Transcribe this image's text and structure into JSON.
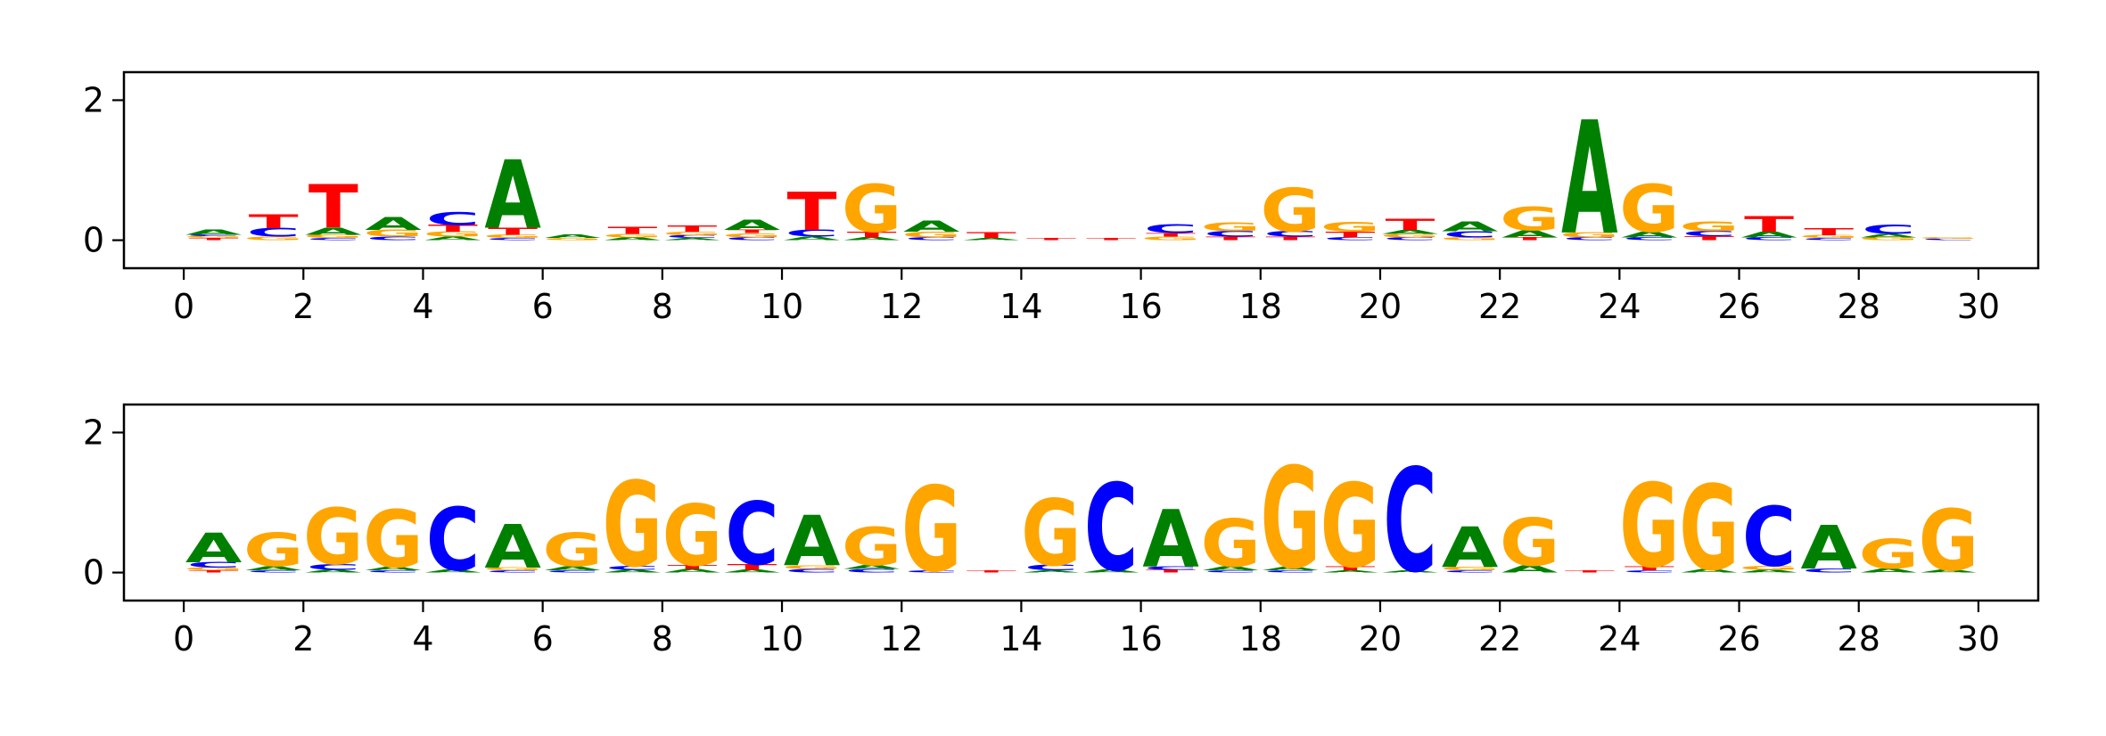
{
  "colors": {
    "A": "#008000",
    "C": "#0000ff",
    "G": "#ffa500",
    "T": "#ff0000"
  },
  "chart_data": [
    {
      "type": "sequence-logo",
      "title": "",
      "xlabel": "",
      "ylabel": "",
      "xlim": [
        -1,
        31
      ],
      "ylim": [
        -0.4,
        2.4
      ],
      "xticks": [
        "0",
        "2",
        "4",
        "6",
        "8",
        "10",
        "12",
        "14",
        "16",
        "18",
        "20",
        "22",
        "24",
        "26",
        "28",
        "30"
      ],
      "yticks": [
        "0",
        "2"
      ],
      "positions": [
        {
          "x": 0.5,
          "letters": [
            {
              "base": "T",
              "h": 0.03
            },
            {
              "base": "G",
              "h": 0.03
            },
            {
              "base": "C",
              "h": 0.02
            },
            {
              "base": "A",
              "h": 0.07
            }
          ]
        },
        {
          "x": 1.5,
          "letters": [
            {
              "base": "G",
              "h": 0.05
            },
            {
              "base": "C",
              "h": 0.12
            },
            {
              "base": "T",
              "h": 0.2
            }
          ]
        },
        {
          "x": 2.5,
          "letters": [
            {
              "base": "C",
              "h": 0.03
            },
            {
              "base": "G",
              "h": 0.05
            },
            {
              "base": "A",
              "h": 0.1
            },
            {
              "base": "T",
              "h": 0.62
            }
          ]
        },
        {
          "x": 3.5,
          "letters": [
            {
              "base": "C",
              "h": 0.05
            },
            {
              "base": "G",
              "h": 0.1
            },
            {
              "base": "A",
              "h": 0.18
            }
          ]
        },
        {
          "x": 4.5,
          "letters": [
            {
              "base": "A",
              "h": 0.05
            },
            {
              "base": "G",
              "h": 0.07
            },
            {
              "base": "T",
              "h": 0.1
            },
            {
              "base": "C",
              "h": 0.18
            }
          ]
        },
        {
          "x": 5.5,
          "letters": [
            {
              "base": "C",
              "h": 0.03
            },
            {
              "base": "G",
              "h": 0.05
            },
            {
              "base": "T",
              "h": 0.1
            },
            {
              "base": "A",
              "h": 0.98
            }
          ]
        },
        {
          "x": 6.5,
          "letters": [
            {
              "base": "G",
              "h": 0.03
            },
            {
              "base": "A",
              "h": 0.05
            }
          ]
        },
        {
          "x": 7.5,
          "letters": [
            {
              "base": "A",
              "h": 0.04
            },
            {
              "base": "G",
              "h": 0.05
            },
            {
              "base": "T",
              "h": 0.1
            }
          ]
        },
        {
          "x": 8.5,
          "letters": [
            {
              "base": "A",
              "h": 0.03
            },
            {
              "base": "C",
              "h": 0.04
            },
            {
              "base": "G",
              "h": 0.05
            },
            {
              "base": "T",
              "h": 0.09
            }
          ]
        },
        {
          "x": 9.5,
          "letters": [
            {
              "base": "C",
              "h": 0.04
            },
            {
              "base": "G",
              "h": 0.06
            },
            {
              "base": "T",
              "h": 0.05
            },
            {
              "base": "A",
              "h": 0.15
            }
          ]
        },
        {
          "x": 10.5,
          "letters": [
            {
              "base": "A",
              "h": 0.05
            },
            {
              "base": "C",
              "h": 0.1
            },
            {
              "base": "T",
              "h": 0.55
            }
          ]
        },
        {
          "x": 11.5,
          "letters": [
            {
              "base": "A",
              "h": 0.04
            },
            {
              "base": "T",
              "h": 0.08
            },
            {
              "base": "G",
              "h": 0.68
            }
          ]
        },
        {
          "x": 12.5,
          "letters": [
            {
              "base": "C",
              "h": 0.04
            },
            {
              "base": "G",
              "h": 0.08
            },
            {
              "base": "A",
              "h": 0.16
            }
          ]
        },
        {
          "x": 13.5,
          "letters": [
            {
              "base": "A",
              "h": 0.03
            },
            {
              "base": "T",
              "h": 0.08
            }
          ]
        },
        {
          "x": 14.5,
          "letters": [
            {
              "base": "T",
              "h": 0.03
            }
          ]
        },
        {
          "x": 15.5,
          "letters": [
            {
              "base": "T",
              "h": 0.03
            }
          ]
        },
        {
          "x": 16.5,
          "letters": [
            {
              "base": "G",
              "h": 0.05
            },
            {
              "base": "T",
              "h": 0.05
            },
            {
              "base": "C",
              "h": 0.12
            }
          ]
        },
        {
          "x": 17.5,
          "letters": [
            {
              "base": "T",
              "h": 0.05
            },
            {
              "base": "C",
              "h": 0.08
            },
            {
              "base": "G",
              "h": 0.12
            }
          ]
        },
        {
          "x": 18.5,
          "letters": [
            {
              "base": "T",
              "h": 0.05
            },
            {
              "base": "C",
              "h": 0.08
            },
            {
              "base": "G",
              "h": 0.62
            }
          ]
        },
        {
          "x": 19.5,
          "letters": [
            {
              "base": "C",
              "h": 0.04
            },
            {
              "base": "T",
              "h": 0.08
            },
            {
              "base": "G",
              "h": 0.14
            }
          ]
        },
        {
          "x": 20.5,
          "letters": [
            {
              "base": "C",
              "h": 0.04
            },
            {
              "base": "G",
              "h": 0.05
            },
            {
              "base": "A",
              "h": 0.06
            },
            {
              "base": "T",
              "h": 0.16
            }
          ]
        },
        {
          "x": 21.5,
          "letters": [
            {
              "base": "G",
              "h": 0.04
            },
            {
              "base": "C",
              "h": 0.09
            },
            {
              "base": "A",
              "h": 0.14
            }
          ]
        },
        {
          "x": 22.5,
          "letters": [
            {
              "base": "T",
              "h": 0.04
            },
            {
              "base": "A",
              "h": 0.1
            },
            {
              "base": "G",
              "h": 0.34
            }
          ]
        },
        {
          "x": 23.5,
          "letters": [
            {
              "base": "C",
              "h": 0.04
            },
            {
              "base": "G",
              "h": 0.07
            },
            {
              "base": "A",
              "h": 1.62
            }
          ]
        },
        {
          "x": 24.5,
          "letters": [
            {
              "base": "C",
              "h": 0.04
            },
            {
              "base": "A",
              "h": 0.08
            },
            {
              "base": "G",
              "h": 0.68
            }
          ]
        },
        {
          "x": 25.5,
          "letters": [
            {
              "base": "T",
              "h": 0.06
            },
            {
              "base": "C",
              "h": 0.07
            },
            {
              "base": "G",
              "h": 0.14
            }
          ]
        },
        {
          "x": 26.5,
          "letters": [
            {
              "base": "C",
              "h": 0.04
            },
            {
              "base": "A",
              "h": 0.08
            },
            {
              "base": "T",
              "h": 0.22
            }
          ]
        },
        {
          "x": 27.5,
          "letters": [
            {
              "base": "C",
              "h": 0.03
            },
            {
              "base": "G",
              "h": 0.04
            },
            {
              "base": "T",
              "h": 0.1
            }
          ]
        },
        {
          "x": 28.5,
          "letters": [
            {
              "base": "G",
              "h": 0.04
            },
            {
              "base": "A",
              "h": 0.05
            },
            {
              "base": "C",
              "h": 0.13
            }
          ]
        },
        {
          "x": 29.5,
          "letters": [
            {
              "base": "C",
              "h": 0.02
            },
            {
              "base": "G",
              "h": 0.02
            }
          ]
        }
      ]
    },
    {
      "type": "sequence-logo",
      "title": "",
      "xlabel": "",
      "ylabel": "",
      "xlim": [
        -1,
        31
      ],
      "ylim": [
        -0.4,
        2.4
      ],
      "xticks": [
        "0",
        "2",
        "4",
        "6",
        "8",
        "10",
        "12",
        "14",
        "16",
        "18",
        "20",
        "22",
        "24",
        "26",
        "28",
        "30"
      ],
      "yticks": [
        "0",
        "2"
      ],
      "positions": [
        {
          "x": 0.5,
          "letters": [
            {
              "base": "T",
              "h": 0.03
            },
            {
              "base": "G",
              "h": 0.04
            },
            {
              "base": "C",
              "h": 0.08
            },
            {
              "base": "A",
              "h": 0.42
            }
          ]
        },
        {
          "x": 1.5,
          "letters": [
            {
              "base": "C",
              "h": 0.03
            },
            {
              "base": "A",
              "h": 0.06
            },
            {
              "base": "G",
              "h": 0.48
            }
          ]
        },
        {
          "x": 2.5,
          "letters": [
            {
              "base": "A",
              "h": 0.04
            },
            {
              "base": "C",
              "h": 0.08
            },
            {
              "base": "G",
              "h": 0.8
            }
          ]
        },
        {
          "x": 3.5,
          "letters": [
            {
              "base": "C",
              "h": 0.03
            },
            {
              "base": "A",
              "h": 0.05
            },
            {
              "base": "G",
              "h": 0.82
            }
          ]
        },
        {
          "x": 4.5,
          "letters": [
            {
              "base": "A",
              "h": 0.04
            },
            {
              "base": "C",
              "h": 0.9
            }
          ]
        },
        {
          "x": 5.5,
          "letters": [
            {
              "base": "C",
              "h": 0.03
            },
            {
              "base": "G",
              "h": 0.04
            },
            {
              "base": "A",
              "h": 0.62
            }
          ]
        },
        {
          "x": 6.5,
          "letters": [
            {
              "base": "C",
              "h": 0.03
            },
            {
              "base": "A",
              "h": 0.06
            },
            {
              "base": "G",
              "h": 0.48
            }
          ]
        },
        {
          "x": 7.5,
          "letters": [
            {
              "base": "A",
              "h": 0.04
            },
            {
              "base": "C",
              "h": 0.06
            },
            {
              "base": "G",
              "h": 1.22
            }
          ]
        },
        {
          "x": 8.5,
          "letters": [
            {
              "base": "A",
              "h": 0.05
            },
            {
              "base": "T",
              "h": 0.06
            },
            {
              "base": "G",
              "h": 0.88
            }
          ]
        },
        {
          "x": 9.5,
          "letters": [
            {
              "base": "A",
              "h": 0.04
            },
            {
              "base": "T",
              "h": 0.08
            },
            {
              "base": "C",
              "h": 0.9
            }
          ]
        },
        {
          "x": 10.5,
          "letters": [
            {
              "base": "C",
              "h": 0.05
            },
            {
              "base": "G",
              "h": 0.05
            },
            {
              "base": "A",
              "h": 0.72
            }
          ]
        },
        {
          "x": 11.5,
          "letters": [
            {
              "base": "C",
              "h": 0.05
            },
            {
              "base": "A",
              "h": 0.06
            },
            {
              "base": "G",
              "h": 0.55
            }
          ]
        },
        {
          "x": 12.5,
          "letters": [
            {
              "base": "C",
              "h": 0.03
            },
            {
              "base": "G",
              "h": 1.22
            }
          ]
        },
        {
          "x": 13.5,
          "letters": [
            {
              "base": "T",
              "h": 0.03
            }
          ]
        },
        {
          "x": 14.5,
          "letters": [
            {
              "base": "A",
              "h": 0.03
            },
            {
              "base": "C",
              "h": 0.08
            },
            {
              "base": "G",
              "h": 0.95
            }
          ]
        },
        {
          "x": 15.5,
          "letters": [
            {
              "base": "A",
              "h": 0.04
            },
            {
              "base": "C",
              "h": 1.25
            }
          ]
        },
        {
          "x": 16.5,
          "letters": [
            {
              "base": "T",
              "h": 0.04
            },
            {
              "base": "C",
              "h": 0.05
            },
            {
              "base": "A",
              "h": 0.82
            }
          ]
        },
        {
          "x": 17.5,
          "letters": [
            {
              "base": "C",
              "h": 0.03
            },
            {
              "base": "A",
              "h": 0.06
            },
            {
              "base": "G",
              "h": 0.68
            }
          ]
        },
        {
          "x": 18.5,
          "letters": [
            {
              "base": "C",
              "h": 0.03
            },
            {
              "base": "A",
              "h": 0.05
            },
            {
              "base": "G",
              "h": 1.45
            }
          ]
        },
        {
          "x": 19.5,
          "letters": [
            {
              "base": "A",
              "h": 0.03
            },
            {
              "base": "T",
              "h": 0.06
            },
            {
              "base": "G",
              "h": 1.2
            }
          ]
        },
        {
          "x": 20.5,
          "letters": [
            {
              "base": "A",
              "h": 0.03
            },
            {
              "base": "C",
              "h": 1.48
            }
          ]
        },
        {
          "x": 21.5,
          "letters": [
            {
              "base": "C",
              "h": 0.03
            },
            {
              "base": "G",
              "h": 0.05
            },
            {
              "base": "A",
              "h": 0.58
            }
          ]
        },
        {
          "x": 22.5,
          "letters": [
            {
              "base": "A",
              "h": 0.1
            },
            {
              "base": "G",
              "h": 0.68
            }
          ]
        },
        {
          "x": 23.5,
          "letters": [
            {
              "base": "T",
              "h": 0.03
            }
          ]
        },
        {
          "x": 24.5,
          "letters": [
            {
              "base": "C",
              "h": 0.03
            },
            {
              "base": "T",
              "h": 0.06
            },
            {
              "base": "G",
              "h": 1.2
            }
          ]
        },
        {
          "x": 25.5,
          "letters": [
            {
              "base": "A",
              "h": 0.05
            },
            {
              "base": "G",
              "h": 1.22
            }
          ]
        },
        {
          "x": 26.5,
          "letters": [
            {
              "base": "A",
              "h": 0.04
            },
            {
              "base": "G",
              "h": 0.06
            },
            {
              "base": "C",
              "h": 0.85
            }
          ]
        },
        {
          "x": 27.5,
          "letters": [
            {
              "base": "C",
              "h": 0.06
            },
            {
              "base": "A",
              "h": 0.62
            }
          ]
        },
        {
          "x": 28.5,
          "letters": [
            {
              "base": "A",
              "h": 0.06
            },
            {
              "base": "G",
              "h": 0.42
            }
          ]
        },
        {
          "x": 29.5,
          "letters": [
            {
              "base": "A",
              "h": 0.04
            },
            {
              "base": "G",
              "h": 0.88
            }
          ]
        }
      ]
    }
  ]
}
